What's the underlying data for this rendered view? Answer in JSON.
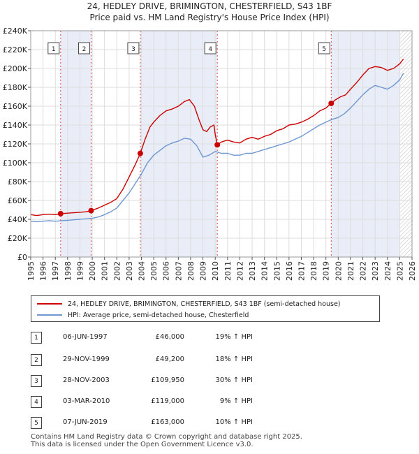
{
  "title_line1": "24, HEDLEY DRIVE, BRIMINGTON, CHESTERFIELD, S43 1BF",
  "title_line2": "Price paid vs. HM Land Registry's House Price Index (HPI)",
  "chart_data": {
    "type": "line",
    "ylim": [
      0,
      240000
    ],
    "xlim": [
      1995,
      2026
    ],
    "yticks": [
      0,
      20000,
      40000,
      60000,
      80000,
      100000,
      120000,
      140000,
      160000,
      180000,
      200000,
      220000,
      240000
    ],
    "ytick_labels": [
      "£0",
      "£20K",
      "£40K",
      "£60K",
      "£80K",
      "£100K",
      "£120K",
      "£140K",
      "£160K",
      "£180K",
      "£200K",
      "£220K",
      "£240K"
    ],
    "xticks": [
      1995,
      1996,
      1997,
      1998,
      1999,
      2000,
      2001,
      2002,
      2003,
      2004,
      2005,
      2006,
      2007,
      2008,
      2009,
      2010,
      2011,
      2012,
      2013,
      2014,
      2015,
      2016,
      2017,
      2018,
      2019,
      2020,
      2021,
      2022,
      2023,
      2024,
      2025,
      2026
    ],
    "series": [
      {
        "name": "24, HEDLEY DRIVE, BRIMINGTON, CHESTERFIELD, S43 1BF (semi-detached house)",
        "color": "#cc0000",
        "x": [
          1995.0,
          1995.5,
          1996.0,
          1996.5,
          1997.0,
          1997.43,
          1998.0,
          1998.5,
          1999.0,
          1999.5,
          1999.91,
          2000.5,
          2001.0,
          2001.5,
          2002.0,
          2002.5,
          2003.0,
          2003.5,
          2003.91,
          2004.3,
          2004.7,
          2005.0,
          2005.5,
          2006.0,
          2006.5,
          2007.0,
          2007.5,
          2007.9,
          2008.3,
          2008.7,
          2009.0,
          2009.3,
          2009.6,
          2009.9,
          2010.0,
          2010.17,
          2010.5,
          2011.0,
          2011.5,
          2012.0,
          2012.5,
          2013.0,
          2013.5,
          2014.0,
          2014.5,
          2015.0,
          2015.5,
          2016.0,
          2016.5,
          2017.0,
          2017.5,
          2018.0,
          2018.5,
          2019.0,
          2019.43,
          2019.8,
          2020.2,
          2020.6,
          2021.0,
          2021.5,
          2022.0,
          2022.5,
          2023.0,
          2023.5,
          2024.0,
          2024.5,
          2025.0,
          2025.3
        ],
        "values": [
          45000,
          44000,
          45000,
          45500,
          45000,
          46000,
          46500,
          47000,
          47500,
          48000,
          49200,
          52000,
          55000,
          58000,
          62000,
          72000,
          85000,
          98000,
          109950,
          125000,
          138000,
          143000,
          150000,
          155000,
          157000,
          160000,
          165000,
          167000,
          160000,
          145000,
          135000,
          133000,
          138000,
          140000,
          130000,
          119000,
          122000,
          124000,
          122000,
          121000,
          125000,
          127000,
          125000,
          128000,
          130000,
          134000,
          136000,
          140000,
          141000,
          143000,
          146000,
          150000,
          155000,
          158000,
          163000,
          167000,
          170000,
          172000,
          178000,
          185000,
          193000,
          200000,
          202000,
          201000,
          198000,
          200000,
          205000,
          210000
        ]
      },
      {
        "name": "HPI: Average price, semi-detached house, Chesterfield",
        "color": "#6f97d0",
        "x": [
          1995.0,
          1995.5,
          1996.0,
          1996.5,
          1997.0,
          1997.5,
          1998.0,
          1998.5,
          1999.0,
          1999.5,
          2000.0,
          2000.5,
          2001.0,
          2001.5,
          2002.0,
          2002.5,
          2003.0,
          2003.5,
          2004.0,
          2004.5,
          2005.0,
          2005.5,
          2006.0,
          2006.5,
          2007.0,
          2007.5,
          2008.0,
          2008.5,
          2009.0,
          2009.5,
          2010.0,
          2010.5,
          2011.0,
          2011.5,
          2012.0,
          2012.5,
          2013.0,
          2013.5,
          2014.0,
          2014.5,
          2015.0,
          2015.5,
          2016.0,
          2016.5,
          2017.0,
          2017.5,
          2018.0,
          2018.5,
          2019.0,
          2019.5,
          2020.0,
          2020.5,
          2021.0,
          2021.5,
          2022.0,
          2022.5,
          2023.0,
          2023.5,
          2024.0,
          2024.5,
          2025.0,
          2025.3
        ],
        "values": [
          38000,
          37500,
          38000,
          38500,
          38000,
          38500,
          39000,
          39500,
          40000,
          40500,
          41000,
          42500,
          45000,
          48000,
          52000,
          60000,
          68000,
          78000,
          88000,
          100000,
          108000,
          113000,
          118000,
          121000,
          123000,
          126000,
          125000,
          118000,
          106000,
          108000,
          112000,
          110000,
          110000,
          108000,
          108000,
          110000,
          110000,
          112000,
          114000,
          116000,
          118000,
          120000,
          122000,
          125000,
          128000,
          132000,
          136000,
          140000,
          143000,
          146000,
          148000,
          152000,
          158000,
          165000,
          172000,
          178000,
          182000,
          180000,
          178000,
          182000,
          188000,
          195000
        ]
      }
    ],
    "sales": [
      {
        "label": "1",
        "year": 1997.43,
        "price": 46000
      },
      {
        "label": "2",
        "year": 1999.91,
        "price": 49200
      },
      {
        "label": "3",
        "year": 2003.91,
        "price": 109950
      },
      {
        "label": "4",
        "year": 2010.17,
        "price": 119000
      },
      {
        "label": "5",
        "year": 2019.43,
        "price": 163000
      }
    ],
    "shaded_ranges": [
      [
        1997.43,
        1999.91
      ],
      [
        2003.91,
        2010.17
      ],
      [
        2019.43,
        2025.0
      ]
    ],
    "hatch_from": 2025.0
  },
  "legend": {
    "property_label": "24, HEDLEY DRIVE, BRIMINGTON, CHESTERFIELD, S43 1BF (semi-detached house)",
    "hpi_label": "HPI: Average price, semi-detached house, Chesterfield",
    "property_color": "#cc0000",
    "hpi_color": "#6f97d0"
  },
  "transactions": [
    {
      "num": "1",
      "date": "06-JUN-1997",
      "price": "£46,000",
      "hpi": "19% ↑ HPI"
    },
    {
      "num": "2",
      "date": "29-NOV-1999",
      "price": "£49,200",
      "hpi": "18% ↑ HPI"
    },
    {
      "num": "3",
      "date": "28-NOV-2003",
      "price": "£109,950",
      "hpi": "30% ↑ HPI"
    },
    {
      "num": "4",
      "date": "03-MAR-2010",
      "price": "£119,000",
      "hpi": "9% ↑ HPI"
    },
    {
      "num": "5",
      "date": "07-JUN-2019",
      "price": "£163,000",
      "hpi": "10% ↑ HPI"
    }
  ],
  "footer_line1": "Contains HM Land Registry data © Crown copyright and database right 2025.",
  "footer_line2": "This data is licensed under the Open Government Licence v3.0."
}
